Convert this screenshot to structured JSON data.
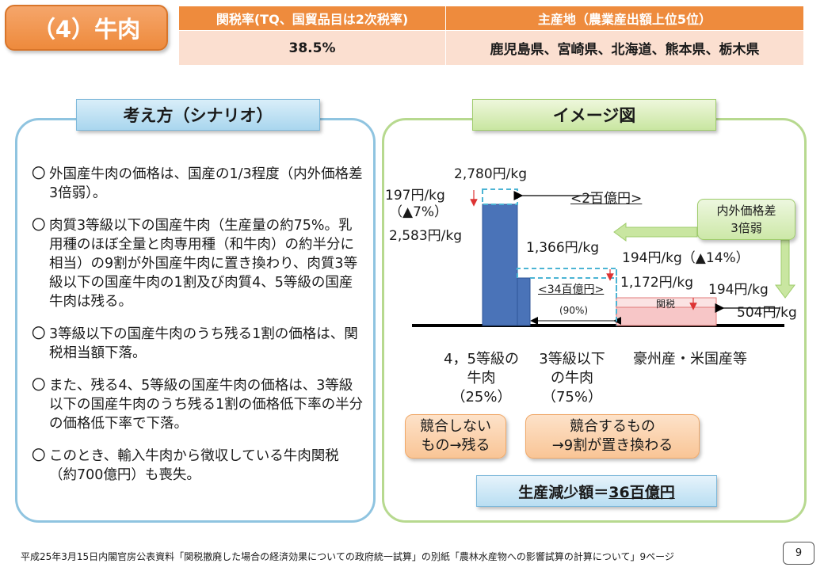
{
  "header": {
    "title": "（4）牛肉",
    "tariff_header": "関税率(TQ、国貿品目は2次税率)",
    "production_header": "主産地（農業産出額上位5位）",
    "tariff_value": "38.5%",
    "production_value": "鹿児島県、宮崎県、北海道、熊本県、栃木県"
  },
  "left_panel": {
    "heading": "考え方（シナリオ）",
    "bullet_mark": "〇",
    "bullets": [
      "外国産牛肉の価格は、国産の1/3程度（内外価格差3倍弱）。",
      "肉質3等級以下の国産牛肉（生産量の約75%。乳用種のほぼ全量と肉専用種（和牛肉）の約半分に相当）の9割が外国産牛肉に置き換わり、肉質3等級以下の国産牛肉の1割及び肉質4、5等級の国産牛肉は残る。",
      "3等級以下の国産牛肉のうち残る1割の価格は、関税相当額下落。",
      "また、残る4、5等級の国産牛肉の価格は、3等級以下の国産牛肉のうち残る1割の価格低下率の半分の価格低下率で下落。",
      "このとき、輸入牛肉から徴収している牛肉関税（約700億円）も喪失。"
    ]
  },
  "right_panel": {
    "heading": "イメージ図",
    "labels": {
      "p2780": "2,780円/kg",
      "p197": "197円/kg",
      "p197pct": "（▲7%）",
      "p2583": "2,583円/kg",
      "loss2": "<2百億円>",
      "p1366": "1,366円/kg",
      "p194a": "194円/kg（▲14%）",
      "p1172": "1,172円/kg",
      "p194b": "194円/kg",
      "loss34": "<34百億円>",
      "pct90": "(90%)",
      "kanzei": "関税",
      "p504": "504円/kg"
    },
    "categories": {
      "c1_line1": "4，5等級の",
      "c1_line2": "牛肉",
      "c1_line3": "（25%）",
      "c2_line1": "3等級以下",
      "c2_line2": "の牛肉",
      "c2_line3": "（75%）",
      "c3_line1": "豪州産・米国産等"
    },
    "price_gap": {
      "line1": "内外価格差",
      "line2": "3倍弱"
    },
    "pill_noncompete": {
      "line1": "競合しない",
      "line2": "もの→残る"
    },
    "pill_compete": {
      "line1": "競合するもの",
      "line2": "→9割が置き換わる"
    },
    "result_prefix": "生産減少額＝",
    "result_value": "36百億円"
  },
  "colors": {
    "bar_blue": "#4a73b8",
    "import_pink": "#f7c6c7",
    "dashed_cyan": "#4cb4d4",
    "orange": "#ee8b3d"
  },
  "footer": {
    "source": "平成25年3月15日内閣官房公表資料「関税撤廃した場合の経済効果についての政府統一試算」の別紙「農林水産物への影響試算の計算について」9ページ",
    "page": "9"
  }
}
